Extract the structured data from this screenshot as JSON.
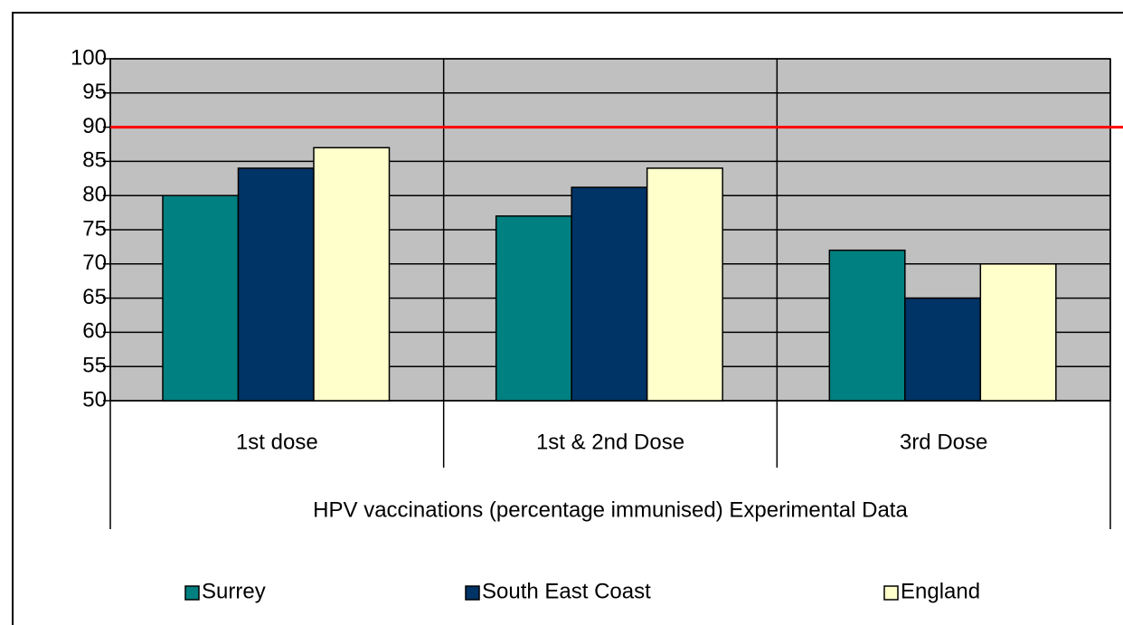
{
  "chart_data": {
    "type": "bar",
    "x_label": "HPV vaccinations (percentage immunised) Experimental Data",
    "categories": [
      "1st dose",
      "1st & 2nd Dose",
      "3rd Dose"
    ],
    "series": [
      {
        "name": "Surrey",
        "color": "#008080",
        "values": [
          80,
          77,
          72
        ]
      },
      {
        "name": "South East Coast",
        "color": "#003366",
        "values": [
          84,
          81.2,
          65
        ]
      },
      {
        "name": "England",
        "color": "#ffffcc",
        "values": [
          87,
          84,
          70
        ]
      }
    ],
    "ylim": [
      50,
      100
    ],
    "yticks": [
      50,
      55,
      60,
      65,
      70,
      75,
      80,
      85,
      90,
      95,
      100
    ],
    "grid": true,
    "plot_background": "#c0c0c0",
    "reference_line": {
      "value": 90,
      "color": "#ff0000"
    },
    "legend": "bottom"
  }
}
